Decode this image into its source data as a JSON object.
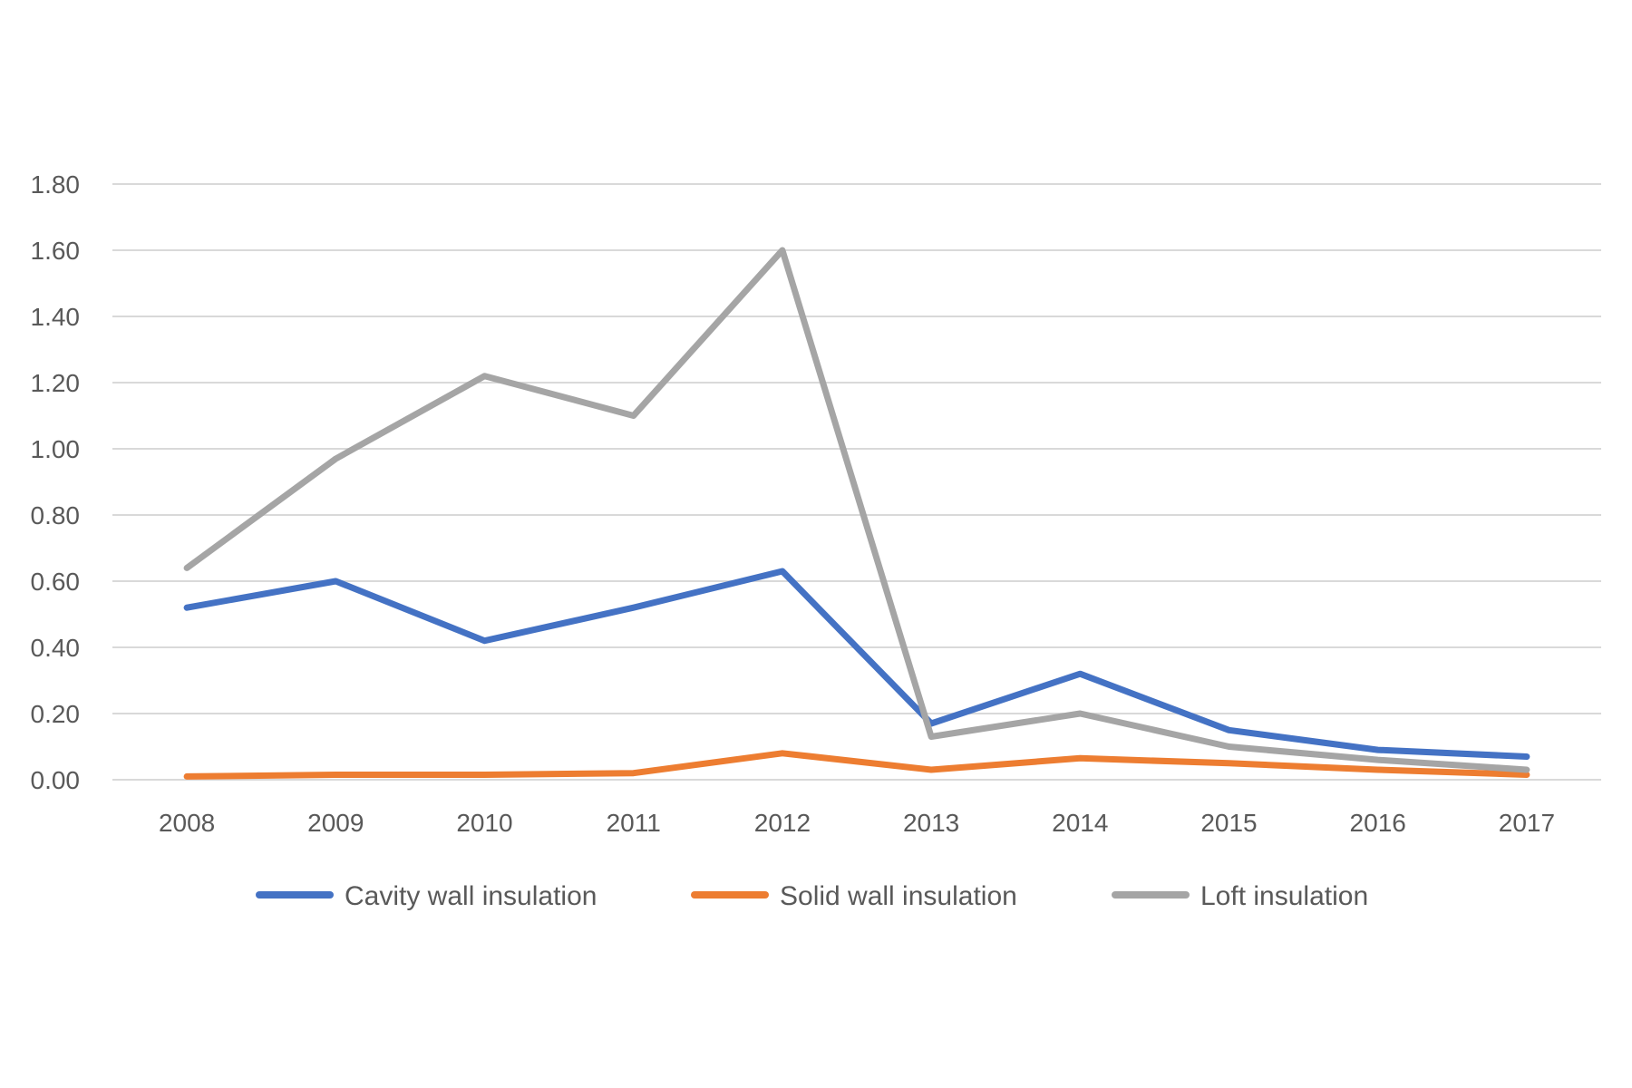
{
  "chart_data": {
    "type": "line",
    "title": "",
    "xlabel": "",
    "ylabel": "",
    "categories": [
      "2008",
      "2009",
      "2010",
      "2011",
      "2012",
      "2013",
      "2014",
      "2015",
      "2016",
      "2017"
    ],
    "ylim": [
      0,
      1.8
    ],
    "yticks": [
      "0.00",
      "0.20",
      "0.40",
      "0.60",
      "0.80",
      "1.00",
      "1.20",
      "1.40",
      "1.60",
      "1.80"
    ],
    "grid": true,
    "legend_position": "bottom",
    "series": [
      {
        "name": "Cavity wall insulation",
        "color": "#4472c4",
        "values": [
          0.52,
          0.6,
          0.42,
          0.52,
          0.63,
          0.17,
          0.32,
          0.15,
          0.09,
          0.07
        ]
      },
      {
        "name": "Solid wall insulation",
        "color": "#ed7d31",
        "values": [
          0.01,
          0.015,
          0.015,
          0.02,
          0.08,
          0.03,
          0.065,
          0.05,
          0.03,
          0.015
        ]
      },
      {
        "name": "Loft insulation",
        "color": "#a5a5a5",
        "values": [
          0.64,
          0.97,
          1.22,
          1.1,
          1.6,
          0.13,
          0.2,
          0.1,
          0.06,
          0.03
        ]
      }
    ]
  }
}
